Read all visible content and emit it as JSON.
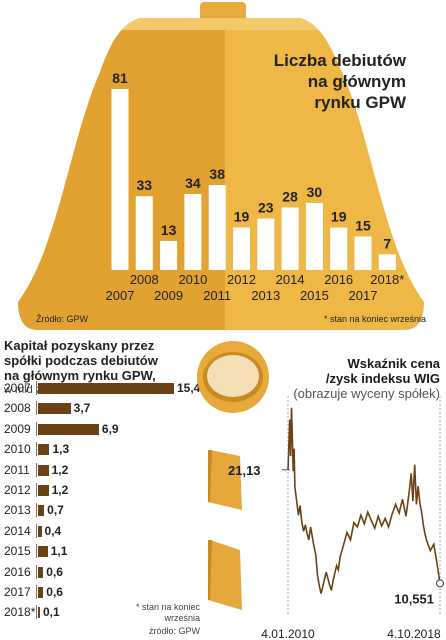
{
  "colors": {
    "bell_left": "#e2a232",
    "bell_right": "#efb846",
    "bell_top": "#f3c96a",
    "bar_white": "#ffffff",
    "hbar": "#6b4216",
    "line": "#6b4216",
    "coin_outer": "#e8a93c",
    "coin_inner": "#f5dfb4"
  },
  "bell": {
    "title_lines": [
      "Liczba debiutów",
      "na głównym",
      "rynku GPW"
    ],
    "source": "Źródło: GPW",
    "footnote": "* stan na koniec września"
  },
  "capital": {
    "title_lines": [
      "Kapitał pozyskany przez",
      "spółki podczas debiutów",
      "na głównym rynku GPW,"
    ],
    "unit": "w mld zł",
    "footnote_lines": [
      "* stan na koniec",
      "września"
    ],
    "source": "źródło: GPW"
  },
  "pe": {
    "title_line1": "Wskaźnik cena",
    "title_line2": "/zysk indeksu WIG",
    "subtitle": "(obrazuje wyceny spółek)"
  },
  "chart_data": [
    {
      "type": "bar",
      "title": "Liczba debiutów na głównym rynku GPW",
      "categories": [
        "2007",
        "2008",
        "2009",
        "2010",
        "2011",
        "2012",
        "2013",
        "2014",
        "2015",
        "2016",
        "2017",
        "2018*"
      ],
      "values": [
        81,
        33,
        13,
        34,
        38,
        19,
        23,
        28,
        30,
        19,
        15,
        7
      ],
      "value_labels": [
        "81",
        "33",
        "13",
        "34",
        "38",
        "19",
        "23",
        "28",
        "30",
        "19",
        "15",
        "7"
      ],
      "ylim": [
        0,
        85
      ]
    },
    {
      "type": "bar",
      "orientation": "horizontal",
      "title": "Kapitał pozyskany przez spółki podczas debiutów na głównym rynku GPW,",
      "unit": "w mld zł",
      "categories": [
        "2007",
        "2008",
        "2009",
        "2010",
        "2011",
        "2012",
        "2013",
        "2014",
        "2015",
        "2016",
        "2017",
        "2018*"
      ],
      "values": [
        15.4,
        3.7,
        6.9,
        1.3,
        1.2,
        1.2,
        0.7,
        0.4,
        1.1,
        0.6,
        0.6,
        0.1
      ],
      "value_labels": [
        "15,4",
        "3,7",
        "6,9",
        "1,3",
        "1,2",
        "1,2",
        "0,7",
        "0,4",
        "1,1",
        "0,6",
        "0,6",
        "0,1"
      ]
    },
    {
      "type": "line",
      "title": "Wskaźnik cena /zysk indeksu WIG",
      "subtitle": "(obrazuje wyceny spółek)",
      "x_ticks": [
        "4.01.2010",
        "4.10.2018"
      ],
      "x_range": [
        "2010-01-04",
        "2018-10-04"
      ],
      "start_label": "21,13",
      "end_label": "10,551",
      "start_value": 21.13,
      "end_value": 10.551,
      "ylim": [
        9,
        28
      ],
      "x": [
        2010.0,
        2010.05,
        2010.1,
        2010.15,
        2010.2,
        2010.25,
        2010.3,
        2010.35,
        2010.4,
        2010.5,
        2010.6,
        2010.7,
        2010.8,
        2010.9,
        2011.0,
        2011.1,
        2011.2,
        2011.3,
        2011.4,
        2011.5,
        2011.6,
        2011.7,
        2011.8,
        2011.9,
        2012.0,
        2012.1,
        2012.2,
        2012.3,
        2012.4,
        2012.5,
        2012.6,
        2012.7,
        2012.8,
        2012.9,
        2013.0,
        2013.2,
        2013.4,
        2013.6,
        2013.8,
        2014.0,
        2014.2,
        2014.4,
        2014.6,
        2014.8,
        2015.0,
        2015.2,
        2015.4,
        2015.6,
        2015.8,
        2016.0,
        2016.2,
        2016.4,
        2016.6,
        2016.8,
        2017.0,
        2017.1,
        2017.2,
        2017.3,
        2017.4,
        2017.5,
        2017.6,
        2017.7,
        2017.8,
        2017.9,
        2018.0,
        2018.2,
        2018.4,
        2018.6,
        2018.76
      ],
      "y": [
        21.13,
        23.5,
        25.8,
        22.4,
        26.9,
        24.2,
        21.0,
        23.1,
        19.5,
        18.2,
        16.9,
        17.8,
        16.2,
        15.4,
        16.0,
        15.2,
        14.6,
        15.8,
        14.9,
        14.0,
        13.2,
        11.3,
        10.4,
        9.6,
        10.2,
        10.9,
        11.6,
        11.0,
        10.4,
        9.9,
        10.8,
        11.5,
        12.2,
        11.8,
        13.0,
        14.1,
        15.3,
        14.6,
        16.2,
        15.8,
        16.9,
        16.1,
        17.2,
        16.4,
        15.7,
        16.8,
        15.9,
        16.6,
        15.8,
        17.0,
        17.9,
        17.1,
        18.4,
        16.8,
        19.3,
        20.8,
        18.2,
        21.6,
        17.9,
        19.6,
        18.0,
        17.2,
        16.0,
        15.1,
        14.5,
        13.6,
        14.2,
        12.3,
        10.551
      ]
    }
  ]
}
